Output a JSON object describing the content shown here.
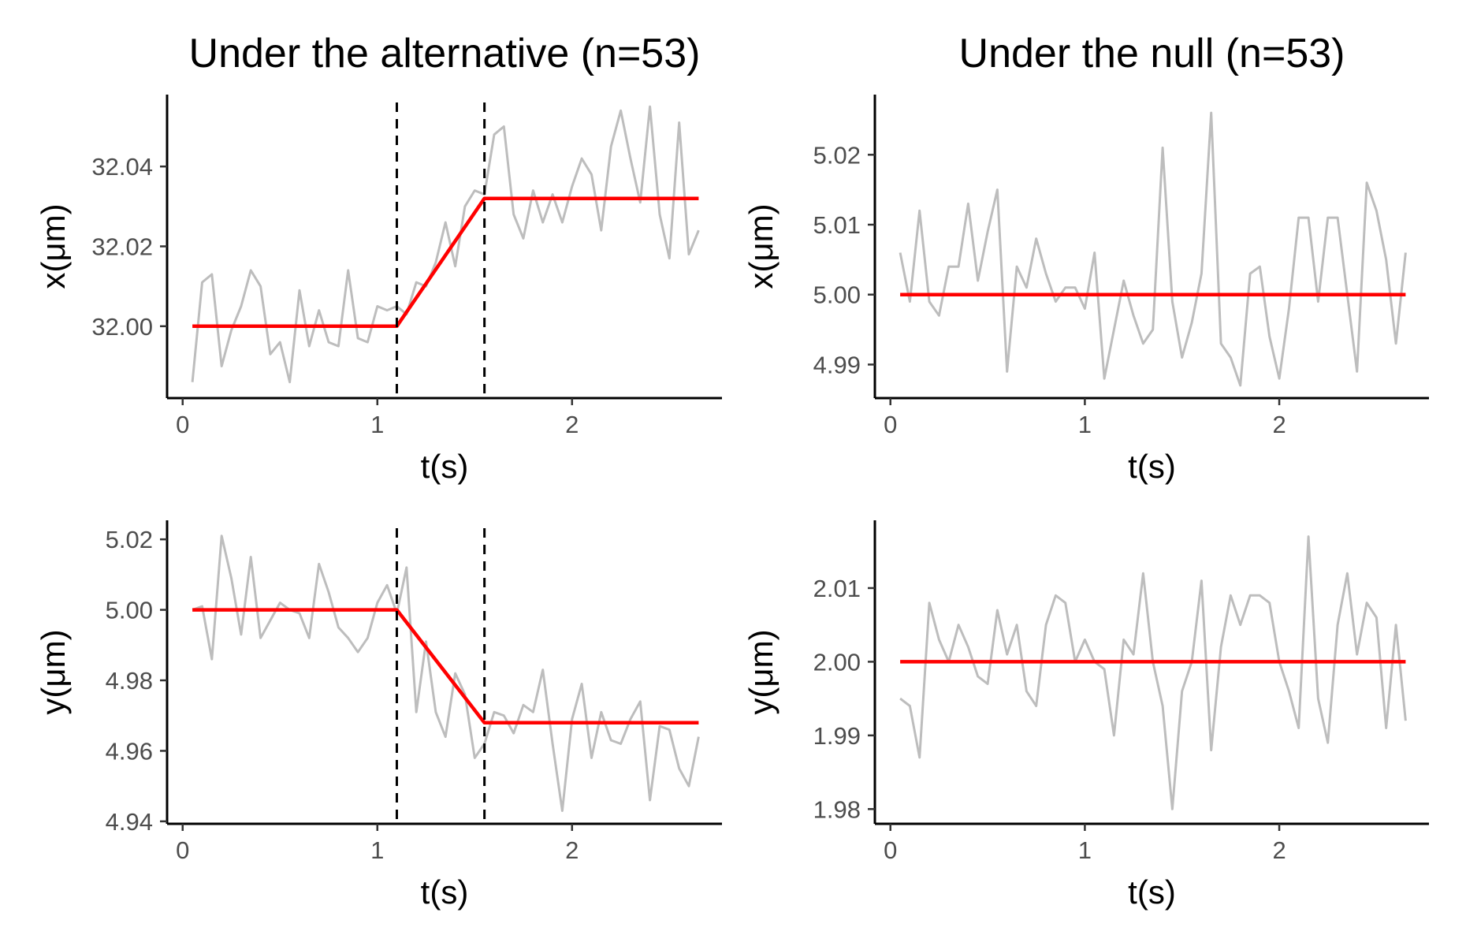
{
  "chart_data": [
    {
      "type": "line",
      "title": "Under the alternative (n=53)",
      "xlabel": "t(s)",
      "ylabel": "x(μm)",
      "xlim": [
        -0.08,
        2.77
      ],
      "ylim": [
        31.982,
        32.058
      ],
      "xticks": [
        0,
        1,
        2
      ],
      "yticks": [
        32.0,
        32.02,
        32.04
      ],
      "ytick_labels": [
        "32.00",
        "32.02",
        "32.04"
      ],
      "grid": false,
      "legend": "none",
      "change_points": [
        1.1,
        1.55
      ],
      "series": [
        {
          "role": "observed",
          "color": "#bdbdbd",
          "x": [
            0.05,
            0.1,
            0.15,
            0.2,
            0.25,
            0.3,
            0.35,
            0.4,
            0.45,
            0.5,
            0.55,
            0.6,
            0.65,
            0.7,
            0.75,
            0.8,
            0.85,
            0.9,
            0.95,
            1.0,
            1.05,
            1.1,
            1.15,
            1.2,
            1.25,
            1.3,
            1.35,
            1.4,
            1.45,
            1.5,
            1.55,
            1.6,
            1.65,
            1.7,
            1.75,
            1.8,
            1.85,
            1.9,
            1.95,
            2.0,
            2.05,
            2.1,
            2.15,
            2.2,
            2.25,
            2.3,
            2.35,
            2.4,
            2.45,
            2.5,
            2.55,
            2.6,
            2.65
          ],
          "y": [
            31.986,
            32.011,
            32.013,
            31.99,
            31.999,
            32.005,
            32.014,
            32.01,
            31.993,
            31.996,
            31.986,
            32.009,
            31.995,
            32.004,
            31.996,
            31.995,
            32.014,
            31.997,
            31.996,
            32.005,
            32.004,
            32.005,
            32.003,
            32.011,
            32.01,
            32.016,
            32.026,
            32.015,
            32.03,
            32.034,
            32.033,
            32.048,
            32.05,
            32.028,
            32.022,
            32.034,
            32.026,
            32.033,
            32.026,
            32.035,
            32.042,
            32.038,
            32.024,
            32.045,
            32.054,
            32.042,
            32.031,
            32.055,
            32.028,
            32.017,
            32.051,
            32.018,
            32.024
          ]
        },
        {
          "role": "fitted",
          "color": "#ff0000",
          "x": [
            0.05,
            1.1,
            1.55,
            2.65
          ],
          "y": [
            32.0,
            32.0,
            32.032,
            32.032
          ]
        }
      ]
    },
    {
      "type": "line",
      "title": "Under the null (n=53)",
      "xlabel": "t(s)",
      "ylabel": "x(μm)",
      "xlim": [
        -0.08,
        2.77
      ],
      "ylim": [
        4.9852,
        5.0286
      ],
      "xticks": [
        0,
        1,
        2
      ],
      "yticks": [
        4.99,
        5.0,
        5.01,
        5.02
      ],
      "ytick_labels": [
        "4.99",
        "5.00",
        "5.01",
        "5.02"
      ],
      "grid": false,
      "legend": "none",
      "change_points": [],
      "series": [
        {
          "role": "observed",
          "color": "#bdbdbd",
          "x": [
            0.05,
            0.1,
            0.15,
            0.2,
            0.25,
            0.3,
            0.35,
            0.4,
            0.45,
            0.5,
            0.55,
            0.6,
            0.65,
            0.7,
            0.75,
            0.8,
            0.85,
            0.9,
            0.95,
            1.0,
            1.05,
            1.1,
            1.15,
            1.2,
            1.25,
            1.3,
            1.35,
            1.4,
            1.45,
            1.5,
            1.55,
            1.6,
            1.65,
            1.7,
            1.75,
            1.8,
            1.85,
            1.9,
            1.95,
            2.0,
            2.05,
            2.1,
            2.15,
            2.2,
            2.25,
            2.3,
            2.35,
            2.4,
            2.45,
            2.5,
            2.55,
            2.6,
            2.65
          ],
          "y": [
            5.006,
            4.999,
            5.012,
            4.999,
            4.997,
            5.004,
            5.004,
            5.013,
            5.002,
            5.009,
            5.015,
            4.989,
            5.004,
            5.001,
            5.008,
            5.003,
            4.999,
            5.001,
            5.001,
            4.998,
            5.006,
            4.988,
            4.995,
            5.002,
            4.997,
            4.993,
            4.995,
            5.021,
            4.999,
            4.991,
            4.996,
            5.003,
            5.026,
            4.993,
            4.991,
            4.987,
            5.003,
            5.004,
            4.994,
            4.988,
            4.998,
            5.011,
            5.011,
            4.999,
            5.011,
            5.011,
            5.0,
            4.989,
            5.016,
            5.012,
            5.005,
            4.993,
            5.006
          ]
        },
        {
          "role": "fitted",
          "color": "#ff0000",
          "x": [
            0.05,
            2.65
          ],
          "y": [
            5.0,
            5.0
          ]
        }
      ]
    },
    {
      "type": "line",
      "title": "",
      "xlabel": "t(s)",
      "ylabel": "y(μm)",
      "xlim": [
        -0.08,
        2.77
      ],
      "ylim": [
        4.9393,
        5.0254
      ],
      "xticks": [
        0,
        1,
        2
      ],
      "yticks": [
        4.94,
        4.96,
        4.98,
        5.0,
        5.02
      ],
      "ytick_labels": [
        "4.94",
        "4.96",
        "4.98",
        "5.00",
        "5.02"
      ],
      "grid": false,
      "legend": "none",
      "change_points": [
        1.1,
        1.55
      ],
      "series": [
        {
          "role": "observed",
          "color": "#bdbdbd",
          "x": [
            0.05,
            0.1,
            0.15,
            0.2,
            0.25,
            0.3,
            0.35,
            0.4,
            0.45,
            0.5,
            0.55,
            0.6,
            0.65,
            0.7,
            0.75,
            0.8,
            0.85,
            0.9,
            0.95,
            1.0,
            1.05,
            1.1,
            1.15,
            1.2,
            1.25,
            1.3,
            1.35,
            1.4,
            1.45,
            1.5,
            1.55,
            1.6,
            1.65,
            1.7,
            1.75,
            1.8,
            1.85,
            1.9,
            1.95,
            2.0,
            2.05,
            2.1,
            2.15,
            2.2,
            2.25,
            2.3,
            2.35,
            2.4,
            2.45,
            2.5,
            2.55,
            2.6,
            2.65
          ],
          "y": [
            5.0,
            5.001,
            4.986,
            5.021,
            5.009,
            4.993,
            5.015,
            4.992,
            4.997,
            5.002,
            5.0,
            4.999,
            4.992,
            5.013,
            5.005,
            4.995,
            4.992,
            4.988,
            4.992,
            5.002,
            5.007,
            4.999,
            5.012,
            4.971,
            4.991,
            4.971,
            4.964,
            4.982,
            4.976,
            4.958,
            4.962,
            4.971,
            4.97,
            4.965,
            4.973,
            4.971,
            4.983,
            4.962,
            4.943,
            4.969,
            4.979,
            4.958,
            4.971,
            4.963,
            4.962,
            4.969,
            4.974,
            4.946,
            4.967,
            4.966,
            4.955,
            4.95,
            4.964
          ]
        },
        {
          "role": "fitted",
          "color": "#ff0000",
          "x": [
            0.05,
            1.1,
            1.55,
            2.65
          ],
          "y": [
            5.0,
            5.0,
            4.968,
            4.968
          ]
        }
      ]
    },
    {
      "type": "line",
      "title": "",
      "xlabel": "t(s)",
      "ylabel": "y(μm)",
      "xlim": [
        -0.08,
        2.77
      ],
      "ylim": [
        1.978,
        2.0192
      ],
      "xticks": [
        0,
        1,
        2
      ],
      "yticks": [
        1.98,
        1.99,
        2.0,
        2.01
      ],
      "ytick_labels": [
        "1.98",
        "1.99",
        "2.00",
        "2.01"
      ],
      "grid": false,
      "legend": "none",
      "change_points": [],
      "series": [
        {
          "role": "observed",
          "color": "#bdbdbd",
          "x": [
            0.05,
            0.1,
            0.15,
            0.2,
            0.25,
            0.3,
            0.35,
            0.4,
            0.45,
            0.5,
            0.55,
            0.6,
            0.65,
            0.7,
            0.75,
            0.8,
            0.85,
            0.9,
            0.95,
            1.0,
            1.05,
            1.1,
            1.15,
            1.2,
            1.25,
            1.3,
            1.35,
            1.4,
            1.45,
            1.5,
            1.55,
            1.6,
            1.65,
            1.7,
            1.75,
            1.8,
            1.85,
            1.9,
            1.95,
            2.0,
            2.05,
            2.1,
            2.15,
            2.2,
            2.25,
            2.3,
            2.35,
            2.4,
            2.45,
            2.5,
            2.55,
            2.6,
            2.65
          ],
          "y": [
            1.995,
            1.994,
            1.987,
            2.008,
            2.003,
            2.0,
            2.005,
            2.002,
            1.998,
            1.997,
            2.007,
            2.001,
            2.005,
            1.996,
            1.994,
            2.005,
            2.009,
            2.008,
            2.0,
            2.003,
            2.0,
            1.999,
            1.99,
            2.003,
            2.001,
            2.012,
            2.0,
            1.994,
            1.98,
            1.996,
            2.0,
            2.011,
            1.988,
            2.002,
            2.009,
            2.005,
            2.009,
            2.009,
            2.008,
            2.0,
            1.996,
            1.991,
            2.017,
            1.995,
            1.989,
            2.005,
            2.012,
            2.001,
            2.008,
            2.006,
            1.991,
            2.005,
            1.992
          ]
        },
        {
          "role": "fitted",
          "color": "#ff0000",
          "x": [
            0.05,
            2.65
          ],
          "y": [
            2.0,
            2.0
          ]
        }
      ]
    }
  ]
}
